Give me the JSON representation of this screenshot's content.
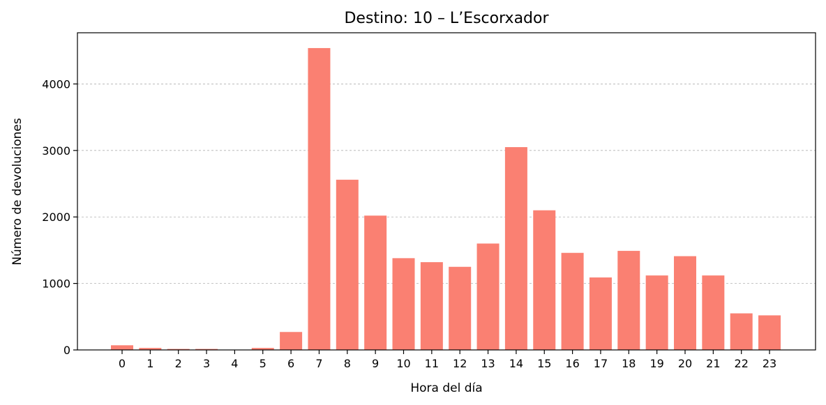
{
  "chart_data": {
    "type": "bar",
    "title": "Destino: 10 – L’Escorxador",
    "xlabel": "Hora del día",
    "ylabel": "Número de devoluciones",
    "categories": [
      "0",
      "1",
      "2",
      "3",
      "4",
      "5",
      "6",
      "7",
      "8",
      "9",
      "10",
      "11",
      "12",
      "13",
      "14",
      "15",
      "16",
      "17",
      "18",
      "19",
      "20",
      "21",
      "22",
      "23"
    ],
    "values": [
      70,
      30,
      15,
      15,
      5,
      30,
      270,
      4540,
      2560,
      2020,
      1380,
      1320,
      1250,
      1600,
      3050,
      2100,
      1460,
      1090,
      1490,
      1120,
      1410,
      1120,
      550,
      520
    ],
    "yticks": [
      "0",
      "1000",
      "2000",
      "3000",
      "4000"
    ],
    "ylim": [
      0,
      4770
    ],
    "grid": "y-dashed",
    "bar_color": "#fa8072"
  }
}
